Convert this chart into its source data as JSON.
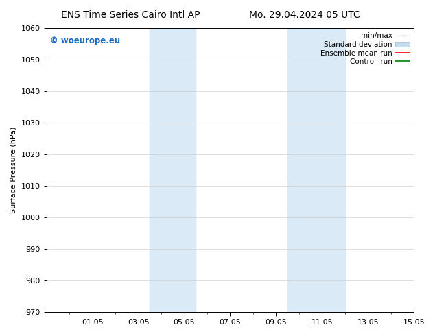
{
  "title_left": "ENS Time Series Cairo Intl AP",
  "title_right": "Mo. 29.04.2024 05 UTC",
  "ylabel": "Surface Pressure (hPa)",
  "ylim": [
    970,
    1060
  ],
  "yticks": [
    970,
    980,
    990,
    1000,
    1010,
    1020,
    1030,
    1040,
    1050,
    1060
  ],
  "xtick_labels": [
    "01.05",
    "03.05",
    "05.05",
    "07.05",
    "09.05",
    "11.05",
    "13.05",
    "15.05"
  ],
  "xtick_positions": [
    2,
    4,
    6,
    8,
    10,
    12,
    14,
    16
  ],
  "xlim": [
    0,
    16
  ],
  "shaded_regions": [
    {
      "xmin": 4.5,
      "xmax": 6.5,
      "color": "#daeaf7"
    },
    {
      "xmin": 10.5,
      "xmax": 13.0,
      "color": "#daeaf7"
    }
  ],
  "watermark_text": "© woeurope.eu",
  "watermark_color": "#1a6abf",
  "legend_items": [
    {
      "label": "min/max",
      "color": "#aaaaaa",
      "type": "errorbar"
    },
    {
      "label": "Standard deviation",
      "color": "#c5ddf0",
      "type": "box"
    },
    {
      "label": "Ensemble mean run",
      "color": "red",
      "type": "line"
    },
    {
      "label": "Controll run",
      "color": "green",
      "type": "line"
    }
  ],
  "background_color": "#ffffff",
  "grid_color": "#d0d0d0",
  "title_fontsize": 10,
  "tick_fontsize": 8,
  "legend_fontsize": 7.5,
  "ylabel_fontsize": 8
}
